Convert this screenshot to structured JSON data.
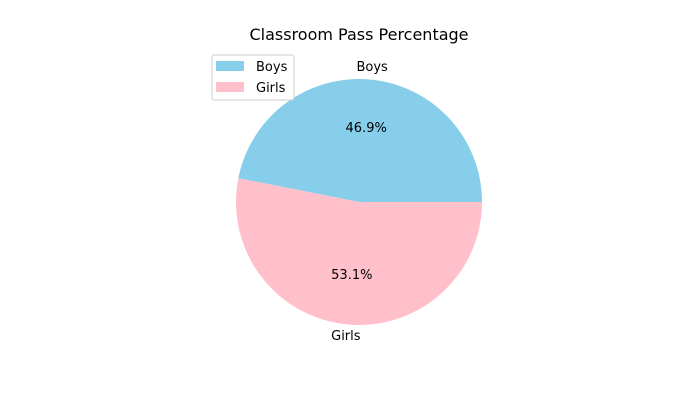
{
  "chart_data": {
    "type": "pie",
    "title": "Classroom Pass Percentage",
    "slices": [
      {
        "label": "Boys",
        "percent": 46.9,
        "percent_label": "46.9%",
        "color": "#87ceeb"
      },
      {
        "label": "Girls",
        "percent": 53.1,
        "percent_label": "53.1%",
        "color": "#ffc0cb"
      }
    ],
    "start_angle_deg": 0,
    "direction": "counterclockwise",
    "legend": {
      "position": "upper-left",
      "entries": [
        "Boys",
        "Girls"
      ]
    }
  }
}
